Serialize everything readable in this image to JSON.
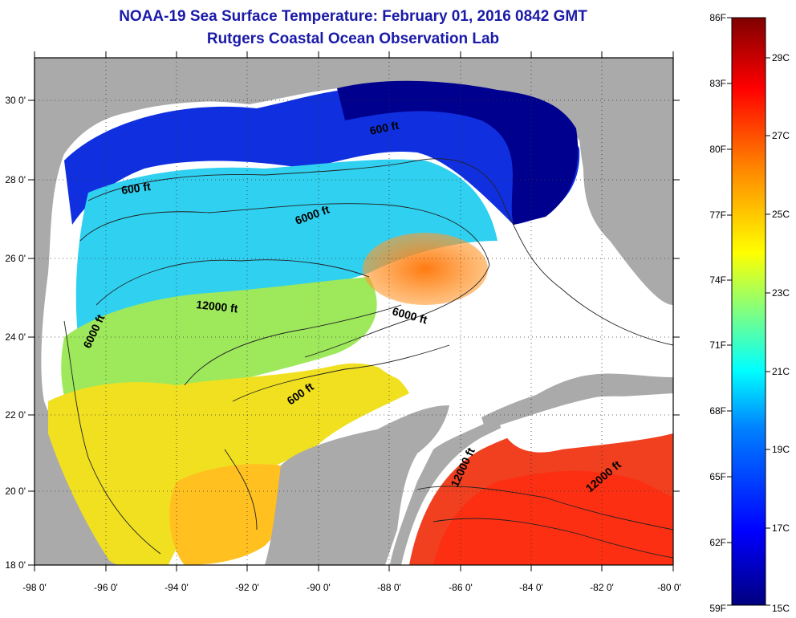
{
  "header": {
    "title": "NOAA-19 Sea Surface Temperature:  February 01, 2016 0842 GMT",
    "subtitle": "Rutgers Coastal Ocean Observation Lab"
  },
  "map": {
    "lon_range": [
      -98,
      -80
    ],
    "lat_range": [
      18,
      31
    ],
    "lon_ticks": [
      "-98 0'",
      "-96 0'",
      "-94 0'",
      "-92 0'",
      "-90 0'",
      "-88 0'",
      "-86 0'",
      "-84 0'",
      "-82 0'",
      "-80 0'"
    ],
    "lat_ticks": [
      "30 0'",
      "28 0'",
      "26 0'",
      "24 0'",
      "22 0'",
      "20 0'",
      "18 0'"
    ],
    "contour_labels": [
      "600 ft",
      "600 ft",
      "6000 ft",
      "12000 ft",
      "6000 ft",
      "6000 ft",
      "600 ft",
      "12000 ft",
      "12000 ft"
    ],
    "colors": {
      "land": "#aaaaaa",
      "cloud": "#ffffff"
    }
  },
  "colorbar": {
    "f_labels": [
      "86F",
      "83F",
      "80F",
      "77F",
      "74F",
      "71F",
      "68F",
      "65F",
      "62F",
      "59F"
    ],
    "c_labels": [
      "29C",
      "27C",
      "25C",
      "23C",
      "21C",
      "19C",
      "17C",
      "15C"
    ],
    "colors": [
      "#00007f",
      "#0000ff",
      "#0080ff",
      "#00ffff",
      "#80ff80",
      "#ffff00",
      "#ff8000",
      "#ff0000",
      "#7f0000"
    ]
  }
}
